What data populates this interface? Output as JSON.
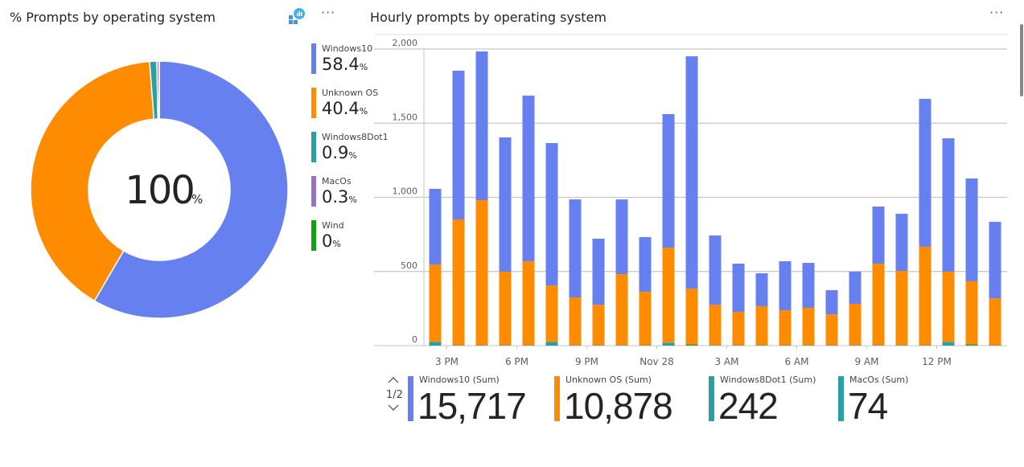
{
  "left_panel": {
    "title": "% Prompts by operating system",
    "more_label": "···",
    "center_value": "100",
    "center_unit": "%",
    "legend": [
      {
        "label": "Windows10",
        "value": "58.4",
        "unit": "%",
        "color": "#6680ef"
      },
      {
        "label": "Unknown OS",
        "value": "40.4",
        "unit": "%",
        "color": "#ff8c00"
      },
      {
        "label": "Windows8Dot1",
        "value": "0.9",
        "unit": "%",
        "color": "#2aa0a4"
      },
      {
        "label": "MacOs",
        "value": "0.3",
        "unit": "%",
        "color": "#9673c3"
      },
      {
        "label": "Wind",
        "value": "0",
        "unit": "%",
        "color": "#13a10e"
      }
    ],
    "slices": [
      58.4,
      40.4,
      0.9,
      0.27,
      0.03
    ]
  },
  "right_panel": {
    "title": "Hourly prompts by operating system",
    "more_label": "···",
    "pager": "1/2",
    "cards": [
      {
        "label": "Windows10 (Sum)",
        "value": "15,717",
        "color": "#6680ef"
      },
      {
        "label": "Unknown OS (Sum)",
        "value": "10,878",
        "color": "#ff8c00"
      },
      {
        "label": "Windows8Dot1 (Sum)",
        "value": "242",
        "color": "#2aa0a4"
      },
      {
        "label": "MacOs (Sum)",
        "value": "74",
        "color": "#2aa0a4"
      }
    ]
  },
  "chart_data": {
    "type": "bar",
    "stacked": true,
    "title": "Hourly prompts by operating system",
    "ylim": [
      0,
      2000
    ],
    "yticks": [
      0,
      500,
      1000,
      1500,
      2000
    ],
    "ytick_labels": [
      "0",
      "500",
      "1,000",
      "1,500",
      "2,000"
    ],
    "xtick_labels": [
      {
        "label": "3 PM",
        "after_bar": 0
      },
      {
        "label": "6 PM",
        "after_bar": 3
      },
      {
        "label": "9 PM",
        "after_bar": 6
      },
      {
        "label": "Nov 28",
        "after_bar": 9
      },
      {
        "label": "3 AM",
        "after_bar": 12
      },
      {
        "label": "6 AM",
        "after_bar": 15
      },
      {
        "label": "9 AM",
        "after_bar": 18
      },
      {
        "label": "12 PM",
        "after_bar": 21
      }
    ],
    "series": [
      {
        "name": "Windows8Dot1",
        "color": "#2aa0a4",
        "values": [
          25,
          3,
          3,
          3,
          3,
          25,
          3,
          3,
          3,
          3,
          20,
          3,
          3,
          3,
          3,
          3,
          3,
          3,
          3,
          3,
          3,
          3,
          25,
          3,
          3
        ]
      },
      {
        "name": "MacOs",
        "color": "#13a10e",
        "values": [
          0,
          0,
          0,
          0,
          0,
          0,
          0,
          0,
          0,
          0,
          0,
          5,
          0,
          0,
          0,
          0,
          0,
          0,
          0,
          0,
          0,
          0,
          0,
          5,
          0
        ]
      },
      {
        "name": "Unknown OS",
        "color": "#ff8c00",
        "values": [
          522,
          848,
          978,
          496,
          566,
          381,
          322,
          273,
          479,
          360,
          641,
          377,
          273,
          225,
          263,
          235,
          252,
          208,
          279,
          550,
          501,
          664,
          474,
          426,
          317
        ]
      },
      {
        "name": "Windows10",
        "color": "#6680ef",
        "values": [
          510,
          1003,
          1003,
          905,
          1117,
          960,
          661,
          445,
          504,
          369,
          900,
          1566,
          467,
          325,
          222,
          331,
          303,
          163,
          217,
          385,
          385,
          997,
          899,
          693,
          515
        ]
      }
    ]
  }
}
